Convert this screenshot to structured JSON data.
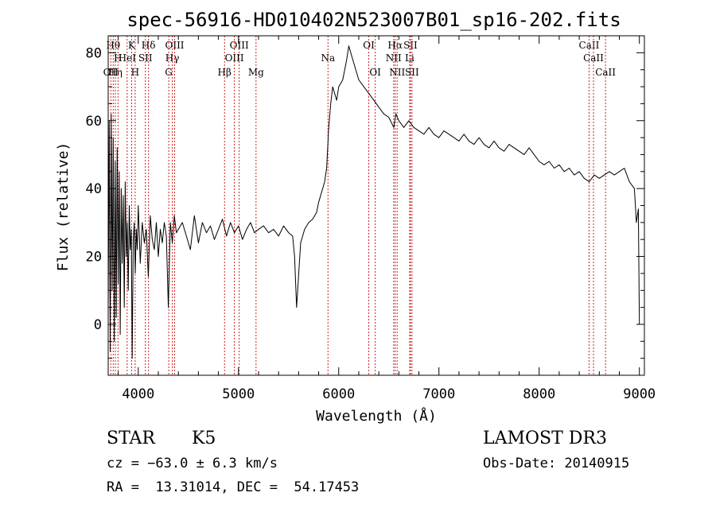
{
  "chart_data": {
    "type": "line",
    "title": "spec-56916-HD010402N523007B01_sp16-202.fits",
    "xlabel": "Wavelength (Å)",
    "ylabel": "Flux (relative)",
    "xlim": [
      3700,
      9050
    ],
    "ylim": [
      -15,
      85
    ],
    "x_ticks": [
      4000,
      5000,
      6000,
      7000,
      8000,
      9000
    ],
    "x_tick_labels": [
      "4000",
      "5000",
      "6000",
      "7000",
      "8000",
      "9000"
    ],
    "y_ticks": [
      0,
      20,
      40,
      60,
      80
    ],
    "y_tick_labels": [
      "0",
      "20",
      "40",
      "60",
      "80"
    ],
    "grid": false,
    "legend": "none",
    "series": [
      {
        "name": "flux",
        "x": [
          3700,
          3710,
          3720,
          3730,
          3740,
          3750,
          3760,
          3770,
          3780,
          3790,
          3800,
          3810,
          3820,
          3830,
          3840,
          3850,
          3860,
          3870,
          3880,
          3890,
          3900,
          3910,
          3920,
          3930,
          3940,
          3950,
          3960,
          3970,
          3980,
          3990,
          4000,
          4020,
          4040,
          4060,
          4080,
          4100,
          4120,
          4140,
          4160,
          4180,
          4200,
          4220,
          4240,
          4260,
          4280,
          4300,
          4320,
          4340,
          4360,
          4380,
          4400,
          4440,
          4480,
          4520,
          4560,
          4600,
          4640,
          4680,
          4720,
          4760,
          4800,
          4840,
          4880,
          4920,
          4960,
          5000,
          5040,
          5080,
          5120,
          5160,
          5200,
          5250,
          5300,
          5350,
          5400,
          5450,
          5500,
          5540,
          5560,
          5580,
          5620,
          5660,
          5700,
          5740,
          5780,
          5800,
          5820,
          5840,
          5860,
          5880,
          5900,
          5920,
          5940,
          5960,
          5980,
          6000,
          6040,
          6080,
          6100,
          6120,
          6160,
          6200,
          6250,
          6300,
          6350,
          6400,
          6450,
          6500,
          6550,
          6570,
          6600,
          6650,
          6700,
          6750,
          6800,
          6850,
          6900,
          6950,
          7000,
          7050,
          7100,
          7150,
          7200,
          7250,
          7300,
          7350,
          7400,
          7450,
          7500,
          7550,
          7600,
          7650,
          7700,
          7750,
          7800,
          7850,
          7900,
          7950,
          8000,
          8050,
          8100,
          8150,
          8200,
          8250,
          8300,
          8350,
          8400,
          8450,
          8500,
          8550,
          8600,
          8650,
          8700,
          8750,
          8800,
          8850,
          8900,
          8950,
          8970,
          8990,
          9000
        ],
        "y": [
          5,
          60,
          -8,
          62,
          10,
          55,
          -5,
          48,
          2,
          52,
          12,
          45,
          -3,
          40,
          18,
          38,
          5,
          42,
          20,
          30,
          10,
          35,
          22,
          28,
          -10,
          25,
          30,
          15,
          28,
          22,
          35,
          18,
          30,
          24,
          28,
          14,
          32,
          25,
          22,
          30,
          20,
          28,
          24,
          30,
          26,
          5,
          30,
          24,
          32,
          27,
          28,
          30,
          26,
          22,
          32,
          24,
          30,
          27,
          29,
          25,
          28,
          31,
          26,
          30,
          27,
          29,
          25,
          28,
          30,
          27,
          28,
          29,
          27,
          28,
          26,
          29,
          27,
          26,
          20,
          5,
          24,
          28,
          30,
          31,
          33,
          36,
          38,
          40,
          42,
          46,
          58,
          65,
          70,
          68,
          66,
          70,
          72,
          78,
          82,
          80,
          76,
          72,
          70,
          68,
          66,
          64,
          62,
          61,
          58,
          62,
          60,
          58,
          60,
          58,
          57,
          56,
          58,
          56,
          55,
          57,
          56,
          55,
          54,
          56,
          54,
          53,
          55,
          53,
          52,
          54,
          52,
          51,
          53,
          52,
          51,
          50,
          52,
          50,
          48,
          47,
          48,
          46,
          47,
          45,
          46,
          44,
          45,
          43,
          42,
          44,
          43,
          44,
          45,
          44,
          45,
          46,
          42,
          40,
          30,
          34,
          0
        ]
      }
    ],
    "line_markers": [
      {
        "wavelength": 3726,
        "label": "OII",
        "row": 2
      },
      {
        "wavelength": 3750,
        "label": "Hθ",
        "row": 0
      },
      {
        "wavelength": 3771,
        "label": "Hη",
        "row": 2
      },
      {
        "wavelength": 3798,
        "label": "H",
        "row": 1
      },
      {
        "wavelength": 3889,
        "label": "HeI",
        "row": 1
      },
      {
        "wavelength": 3934,
        "label": "K",
        "row": 0
      },
      {
        "wavelength": 3969,
        "label": "H",
        "row": 2
      },
      {
        "wavelength": 4071,
        "label": "SII",
        "row": 1
      },
      {
        "wavelength": 4102,
        "label": "Hδ",
        "row": 0
      },
      {
        "wavelength": 4304,
        "label": "G",
        "row": 2
      },
      {
        "wavelength": 4340,
        "label": "Hγ",
        "row": 1
      },
      {
        "wavelength": 4363,
        "label": "OIII",
        "row": 0
      },
      {
        "wavelength": 4861,
        "label": "Hβ",
        "row": 2
      },
      {
        "wavelength": 4959,
        "label": "OIII",
        "row": 1
      },
      {
        "wavelength": 5007,
        "label": "OIII",
        "row": 0
      },
      {
        "wavelength": 5175,
        "label": "Mg",
        "row": 2
      },
      {
        "wavelength": 5893,
        "label": "Na",
        "row": 1
      },
      {
        "wavelength": 6300,
        "label": "OI",
        "row": 0
      },
      {
        "wavelength": 6364,
        "label": "OI",
        "row": 2
      },
      {
        "wavelength": 6548,
        "label": "NII",
        "row": 1
      },
      {
        "wavelength": 6563,
        "label": "Hα",
        "row": 0
      },
      {
        "wavelength": 6583,
        "label": "NII",
        "row": 2
      },
      {
        "wavelength": 6708,
        "label": "Li",
        "row": 1
      },
      {
        "wavelength": 6716,
        "label": "SII",
        "row": 0
      },
      {
        "wavelength": 6731,
        "label": "SII",
        "row": 2
      },
      {
        "wavelength": 8498,
        "label": "CaII",
        "row": 0
      },
      {
        "wavelength": 8542,
        "label": "CaII",
        "row": 1
      },
      {
        "wavelength": 8662,
        "label": "CaII",
        "row": 2
      }
    ]
  },
  "info": {
    "object_class": "STAR",
    "subclass": "K5",
    "survey": "LAMOST DR3",
    "cz": "cz = −63.0 ± 6.3 km/s",
    "obs_date": "Obs-Date: 20140915",
    "coords": "RA =  13.31014, DEC =  54.17453"
  },
  "colors": {
    "marker": "#cc2222",
    "spectrum": "#000000",
    "axis": "#000000"
  }
}
